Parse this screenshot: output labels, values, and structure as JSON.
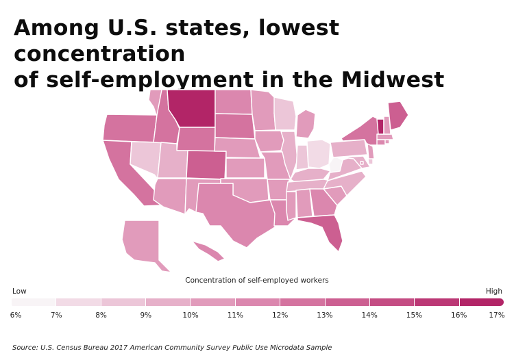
{
  "title": {
    "line1": "Among U.S. states, lowest concentration",
    "line2": "of self-employment in the Midwest"
  },
  "legend": {
    "title": "Concentration of self-employed workers",
    "low_label": "Low",
    "high_label": "High",
    "ticks": [
      "6%",
      "7%",
      "8%",
      "9%",
      "10%",
      "11%",
      "12%",
      "13%",
      "14%",
      "15%",
      "16%",
      "17%"
    ],
    "colors": [
      "#f8f4f6",
      "#f2dbe6",
      "#ecc6d8",
      "#e6b0c9",
      "#e19bbb",
      "#db87ae",
      "#d4739f",
      "#cc5f91",
      "#c44c83",
      "#bb3875",
      "#b22567"
    ]
  },
  "source": "Source:  U.S. Census Bureau 2017 American Community Survey Public Use Microdata Sample",
  "chart_data": {
    "type": "choropleth",
    "metric": "Concentration of self-employed workers (%)",
    "scale_range": [
      6,
      17
    ],
    "values": {
      "WA": 10,
      "OR": 12,
      "CA": 12,
      "NV": 8,
      "ID": 12,
      "MT": 16,
      "WY": 12,
      "UT": 9,
      "AZ": 10,
      "CO": 13,
      "NM": 10,
      "ND": 11,
      "SD": 12,
      "NE": 10,
      "KS": 10,
      "OK": 10,
      "TX": 11,
      "MN": 10,
      "IA": 10,
      "MO": 10,
      "AR": 10,
      "LA": 11,
      "WI": 8,
      "IL": 9,
      "MI": 10,
      "IN": 8,
      "OH": 7,
      "KY": 9,
      "TN": 9,
      "MS": 10,
      "AL": 10,
      "GA": 11,
      "FL": 13,
      "SC": 10,
      "NC": 9,
      "VA": 9,
      "WV": 6,
      "PA": 9,
      "NY": 12,
      "MD": 9,
      "DE": 8,
      "NJ": 10,
      "CT": 11,
      "RI": 10,
      "MA": 10,
      "VT": 16,
      "NH": 10,
      "ME": 13,
      "AK": 10,
      "HI": 11,
      "DC": 10
    }
  }
}
